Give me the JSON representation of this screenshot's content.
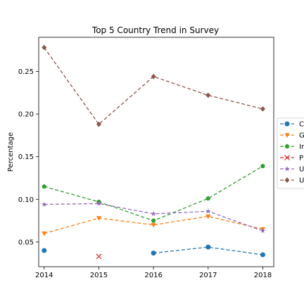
{
  "chart_data": {
    "type": "line",
    "title": "Top 5 Country Trend in Survey",
    "xlabel": "",
    "ylabel": "Percentage",
    "x": [
      2014,
      2015,
      2016,
      2017,
      2018
    ],
    "xlim": [
      2013.9,
      2018.2
    ],
    "ylim": [
      0.021,
      0.29
    ],
    "yticks": [
      0.05,
      0.1,
      0.15,
      0.2,
      0.25
    ],
    "ytick_labels": [
      "0.05",
      "0.10",
      "0.15",
      "0.20",
      "0.25"
    ],
    "grid": false,
    "legend_position": "right, outside plot, partially cut off",
    "series": [
      {
        "name": "C",
        "color": "#1f77b4",
        "marker": "circle",
        "values": [
          0.04,
          null,
          0.037,
          0.044,
          0.035
        ]
      },
      {
        "name": "G",
        "color": "#ff7f0e",
        "marker": "triangle-down",
        "values": [
          0.06,
          0.078,
          0.07,
          0.08,
          0.065
        ]
      },
      {
        "name": "Ir",
        "color": "#2ca02c",
        "marker": "pentagon",
        "values": [
          0.115,
          0.097,
          0.075,
          0.101,
          0.139
        ]
      },
      {
        "name": "P",
        "color": "#d62728",
        "marker": "x",
        "values": [
          null,
          0.033,
          null,
          null,
          null
        ]
      },
      {
        "name": "U",
        "color": "#9467bd",
        "marker": "star",
        "values": [
          0.094,
          0.095,
          0.083,
          0.086,
          0.063
        ]
      },
      {
        "name": "U",
        "color": "#8c564b",
        "marker": "diamond",
        "values": [
          0.278,
          0.188,
          0.244,
          0.222,
          0.206
        ]
      }
    ]
  }
}
